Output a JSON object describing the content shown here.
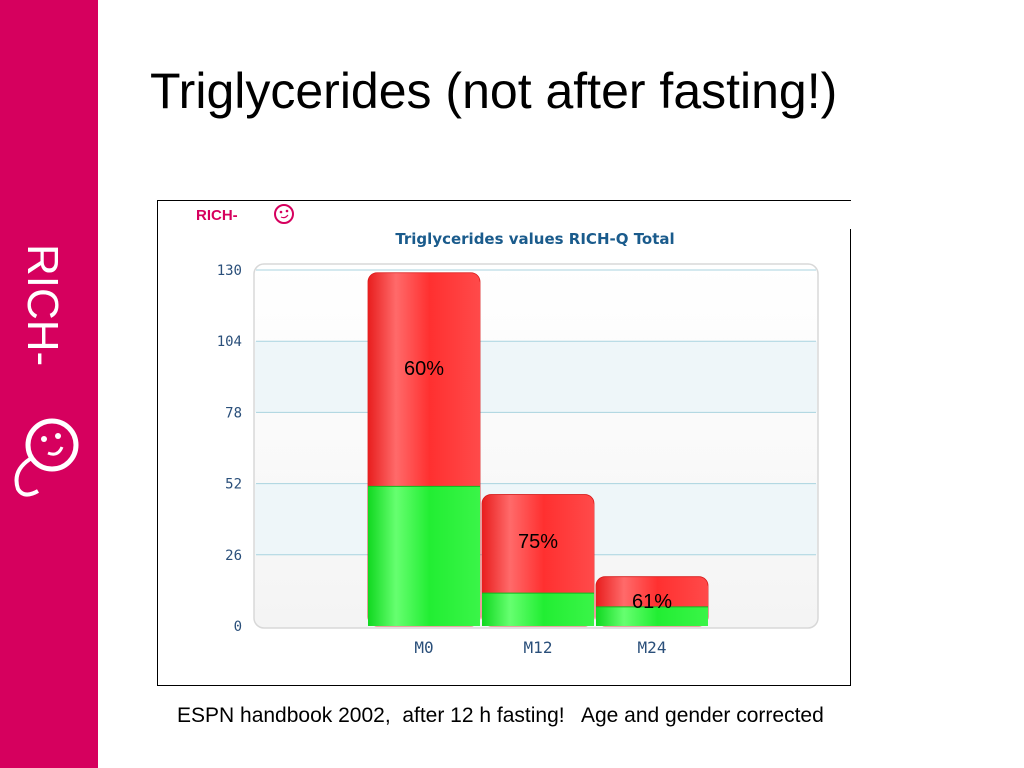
{
  "slide": {
    "title": "Triglycerides (not after fasting!)",
    "caption": "ESPN handbook 2002,  after 12 h fasting!   Age and gender corrected"
  },
  "branding": {
    "side_logo_text": "RICH-",
    "chart_logo_text": "RICH-",
    "logo_name": "rich-q-smiley-icon",
    "band_color": "#d6005e"
  },
  "colors": {
    "total_bar": "#ff3b3b",
    "lower_bar": "#22ee33",
    "chart_title": "#1a5b8c",
    "tick_text": "#2a4f7a",
    "grid": "#a9d3df"
  },
  "chart_data": {
    "type": "bar",
    "title": "Triglycerides values RICH-Q Total",
    "categories": [
      "M0",
      "M12",
      "M24"
    ],
    "series": [
      {
        "values": [
          51,
          12,
          7
        ]
      },
      {
        "values": [
          129,
          48,
          18
        ]
      }
    ],
    "bar_labels": [
      "60%",
      "75%",
      "61%"
    ],
    "y_ticks": [
      "0",
      "26",
      "52",
      "78",
      "104",
      "130"
    ],
    "ylim": [
      0,
      130
    ],
    "grid": true,
    "xlabel": "",
    "ylabel": ""
  }
}
